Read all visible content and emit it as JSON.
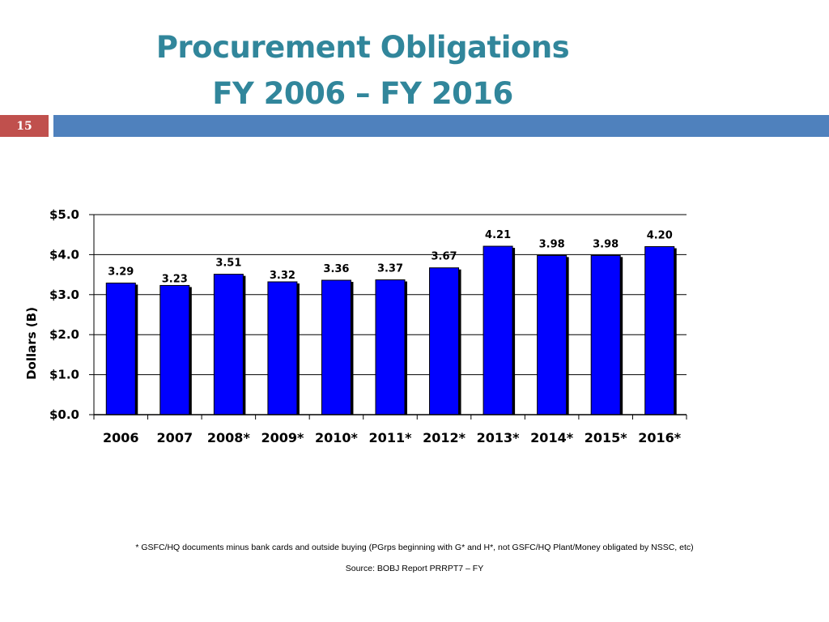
{
  "slide": {
    "title_line1": "Procurement Obligations",
    "title_line2": "FY 2006 – FY 2016",
    "page_number": "15",
    "footnote": "* GSFC/HQ documents minus bank cards and outside buying (PGrps beginning with G* and H*, not GSFC/HQ Plant/Money obligated by NSSC, etc)",
    "source": "Source: BOBJ Report PRRPT7 – FY",
    "colors": {
      "title": "#31869B",
      "page_box": "#C0504D",
      "header_bar": "#4F81BD"
    }
  },
  "chart_data": {
    "type": "bar",
    "categories": [
      "2006",
      "2007",
      "2008*",
      "2009*",
      "2010*",
      "2011*",
      "2012*",
      "2013*",
      "2014*",
      "2015*",
      "2016*"
    ],
    "values": [
      3.29,
      3.23,
      3.51,
      3.32,
      3.36,
      3.37,
      3.67,
      4.21,
      3.98,
      3.98,
      4.2
    ],
    "value_labels": [
      "3.29",
      "3.23",
      "3.51",
      "3.32",
      "3.36",
      "3.37",
      "3.67",
      "4.21",
      "3.98",
      "3.98",
      "4.20"
    ],
    "ylabel": "Dollars (B)",
    "ylim": [
      0,
      5
    ],
    "yticks": [
      0,
      1,
      2,
      3,
      4,
      5
    ],
    "ytick_labels": [
      "$0.0",
      "$1.0",
      "$2.0",
      "$3.0",
      "$4.0",
      "$5.0"
    ],
    "grid": true,
    "legend": false,
    "bar_color": "#0000FF"
  }
}
